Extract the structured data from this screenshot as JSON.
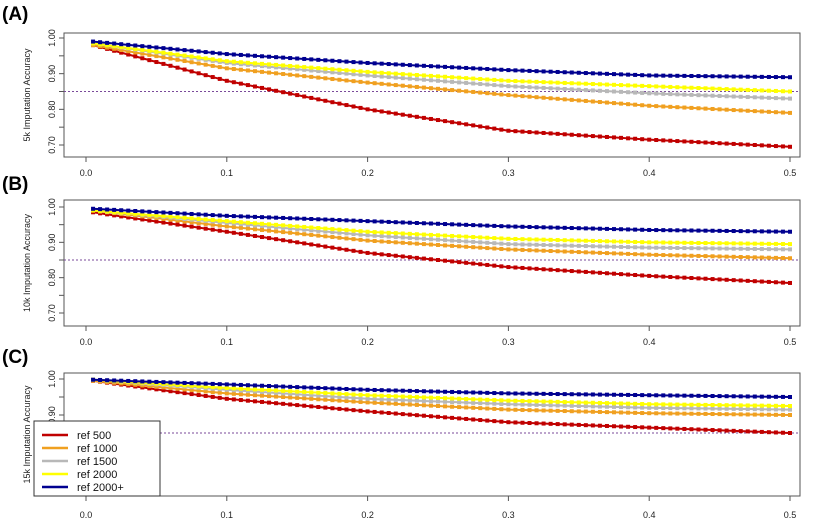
{
  "chart_data": [
    {
      "type": "line",
      "panel_label": "(A)",
      "ylabel": "5k Imputation Accuracy",
      "xlabel": "",
      "xlim": [
        0,
        0.5
      ],
      "ylim": [
        0.68,
        1.01
      ],
      "xticks": [
        "0.0",
        "0.1",
        "0.2",
        "0.3",
        "0.4",
        "0.5"
      ],
      "yticks": [
        "0.70",
        "0.80",
        "0.90",
        "1.00"
      ],
      "reference_line": 0.85,
      "x": [
        0.005,
        0.1,
        0.2,
        0.3,
        0.4,
        0.5
      ],
      "series": [
        {
          "name": "ref 500",
          "values": [
            0.98,
            0.88,
            0.8,
            0.74,
            0.715,
            0.695
          ]
        },
        {
          "name": "ref 1000",
          "values": [
            0.98,
            0.915,
            0.875,
            0.84,
            0.81,
            0.79
          ]
        },
        {
          "name": "ref 1500",
          "values": [
            0.985,
            0.93,
            0.895,
            0.865,
            0.845,
            0.83
          ]
        },
        {
          "name": "ref 2000",
          "values": [
            0.985,
            0.935,
            0.905,
            0.88,
            0.865,
            0.85
          ]
        },
        {
          "name": "ref 2000+",
          "values": [
            0.99,
            0.955,
            0.93,
            0.91,
            0.895,
            0.89
          ]
        }
      ]
    },
    {
      "type": "line",
      "panel_label": "(B)",
      "ylabel": "10k Imputation Accuracy",
      "xlabel": "",
      "xlim": [
        0,
        0.5
      ],
      "ylim": [
        0.68,
        1.01
      ],
      "xticks": [
        "0.0",
        "0.1",
        "0.2",
        "0.3",
        "0.4",
        "0.5"
      ],
      "yticks": [
        "0.70",
        "0.80",
        "0.90",
        "1.00"
      ],
      "reference_line": 0.85,
      "x": [
        0.005,
        0.1,
        0.2,
        0.3,
        0.4,
        0.5
      ],
      "series": [
        {
          "name": "ref 500",
          "values": [
            0.985,
            0.93,
            0.87,
            0.83,
            0.805,
            0.785
          ]
        },
        {
          "name": "ref 1000",
          "values": [
            0.99,
            0.945,
            0.905,
            0.88,
            0.865,
            0.855
          ]
        },
        {
          "name": "ref 1500",
          "values": [
            0.99,
            0.955,
            0.92,
            0.895,
            0.885,
            0.88
          ]
        },
        {
          "name": "ref 2000",
          "values": [
            0.99,
            0.96,
            0.93,
            0.91,
            0.9,
            0.895
          ]
        },
        {
          "name": "ref 2000+",
          "values": [
            0.995,
            0.975,
            0.96,
            0.945,
            0.935,
            0.93
          ]
        }
      ]
    },
    {
      "type": "line",
      "panel_label": "(C)",
      "ylabel": "15k Imputation Accuracy",
      "xlabel": "",
      "xlim": [
        0,
        0.5
      ],
      "ylim": [
        0.68,
        1.01
      ],
      "xticks": [
        "0.0",
        "0.1",
        "0.2",
        "0.3",
        "0.4",
        "0.5"
      ],
      "yticks": [
        "0.70",
        "0.80",
        "0.90",
        "1.00"
      ],
      "reference_line": 0.85,
      "legend_position": "bottom-left",
      "x": [
        0.005,
        0.1,
        0.2,
        0.3,
        0.4,
        0.5
      ],
      "series": [
        {
          "name": "ref 500",
          "values": [
            0.995,
            0.945,
            0.91,
            0.88,
            0.865,
            0.85
          ]
        },
        {
          "name": "ref 1000",
          "values": [
            0.995,
            0.96,
            0.935,
            0.915,
            0.905,
            0.9
          ]
        },
        {
          "name": "ref 1500",
          "values": [
            0.998,
            0.97,
            0.945,
            0.93,
            0.92,
            0.915
          ]
        },
        {
          "name": "ref 2000",
          "values": [
            0.998,
            0.975,
            0.955,
            0.94,
            0.93,
            0.925
          ]
        },
        {
          "name": "ref 2000+",
          "values": [
            0.998,
            0.985,
            0.97,
            0.96,
            0.955,
            0.95
          ]
        }
      ]
    }
  ],
  "colors": {
    "ref 500": "#c00000",
    "ref 1000": "#f0a020",
    "ref 1500": "#b8b8b8",
    "ref 2000": "#ffff00",
    "ref 2000+": "#000090",
    "refline": "#7a4a9a"
  }
}
